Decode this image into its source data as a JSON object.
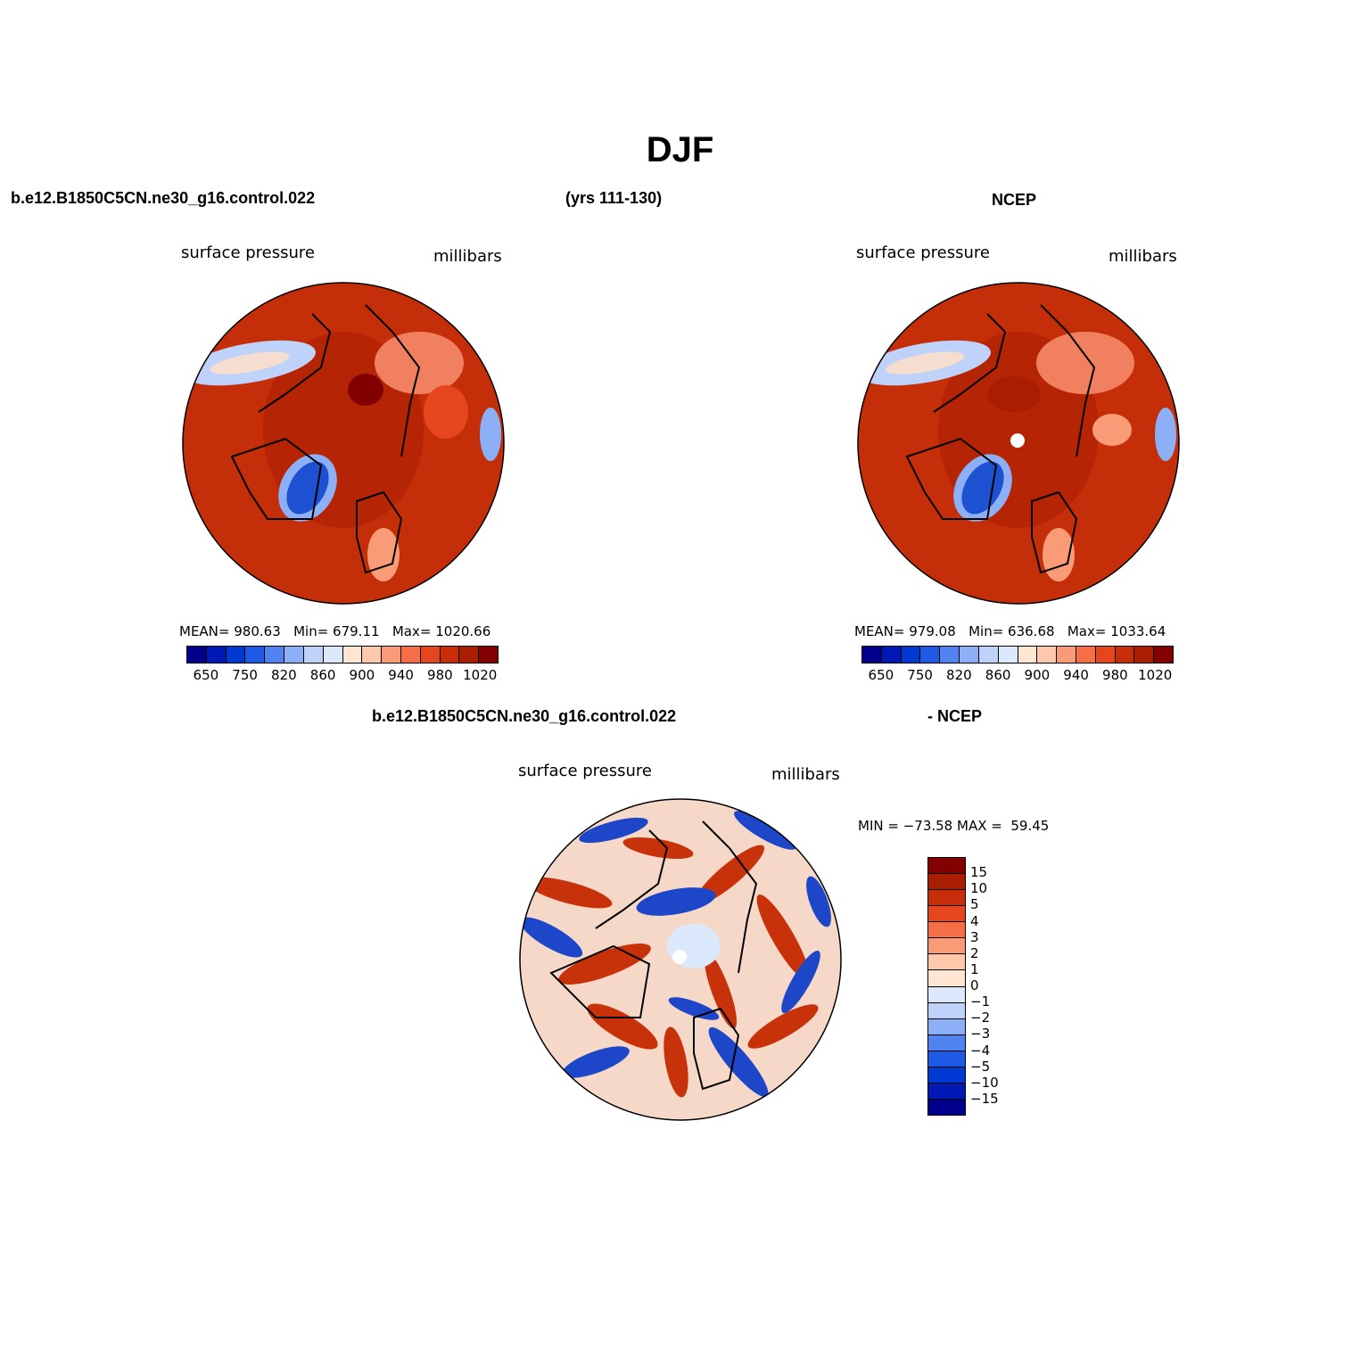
{
  "title": "DJF",
  "panel_left": {
    "header": "b.e12.B1850C5CN.ne30_g16.control.022",
    "header_center": "(yrs 111-130)",
    "left_label": "surface pressure",
    "right_label": "millibars",
    "mean": "980.63",
    "min": "679.11",
    "max": "1020.66"
  },
  "panel_right": {
    "header": "NCEP",
    "left_label": "surface pressure",
    "right_label": "millibars",
    "mean": "979.08",
    "min": "636.68",
    "max": "1033.64"
  },
  "panel_diff": {
    "header_left": "b.e12.B1850C5CN.ne30_g16.control.022",
    "header_right": "- NCEP",
    "left_label": "surface pressure",
    "right_label": "millibars",
    "min": "−73.58",
    "max": "59.45"
  },
  "stat_labels": {
    "mean": "MEAN=",
    "min": "Min=",
    "max": "Max=",
    "dmin": "MIN =",
    "dmax": "MAX ="
  },
  "abs_colorbar": {
    "colors": [
      "#00008c",
      "#0019b4",
      "#0039d2",
      "#1e5ae6",
      "#5082f0",
      "#8caff5",
      "#bed2fa",
      "#dce9fd",
      "#ffe6d2",
      "#ffc8aa",
      "#fa9b78",
      "#f56e46",
      "#e6461e",
      "#c82d0a",
      "#aa1e00",
      "#820000"
    ],
    "labels": [
      "650",
      "750",
      "820",
      "860",
      "900",
      "940",
      "980",
      "1020"
    ]
  },
  "diff_colorbar": {
    "colors": [
      "#820000",
      "#aa1e00",
      "#c82d0a",
      "#e6461e",
      "#f56e46",
      "#fa9b78",
      "#ffc8aa",
      "#ffe6d2",
      "#dce9fd",
      "#bed2fa",
      "#8caff5",
      "#5082f0",
      "#1e5ae6",
      "#0039d2",
      "#0019b4",
      "#00008c"
    ],
    "labels": [
      "15",
      "10",
      "5",
      "4",
      "3",
      "2",
      "1",
      "0",
      "−1",
      "−2",
      "−3",
      "−4",
      "−5",
      "−10",
      "−15"
    ]
  },
  "map_colors": {
    "base_abs": "#b42405",
    "high": "#d23a10",
    "low_blue": "#1e50d2",
    "pale": "#f5ded0",
    "diff_red": "#c8320a",
    "diff_blue": "#1e46c8"
  }
}
